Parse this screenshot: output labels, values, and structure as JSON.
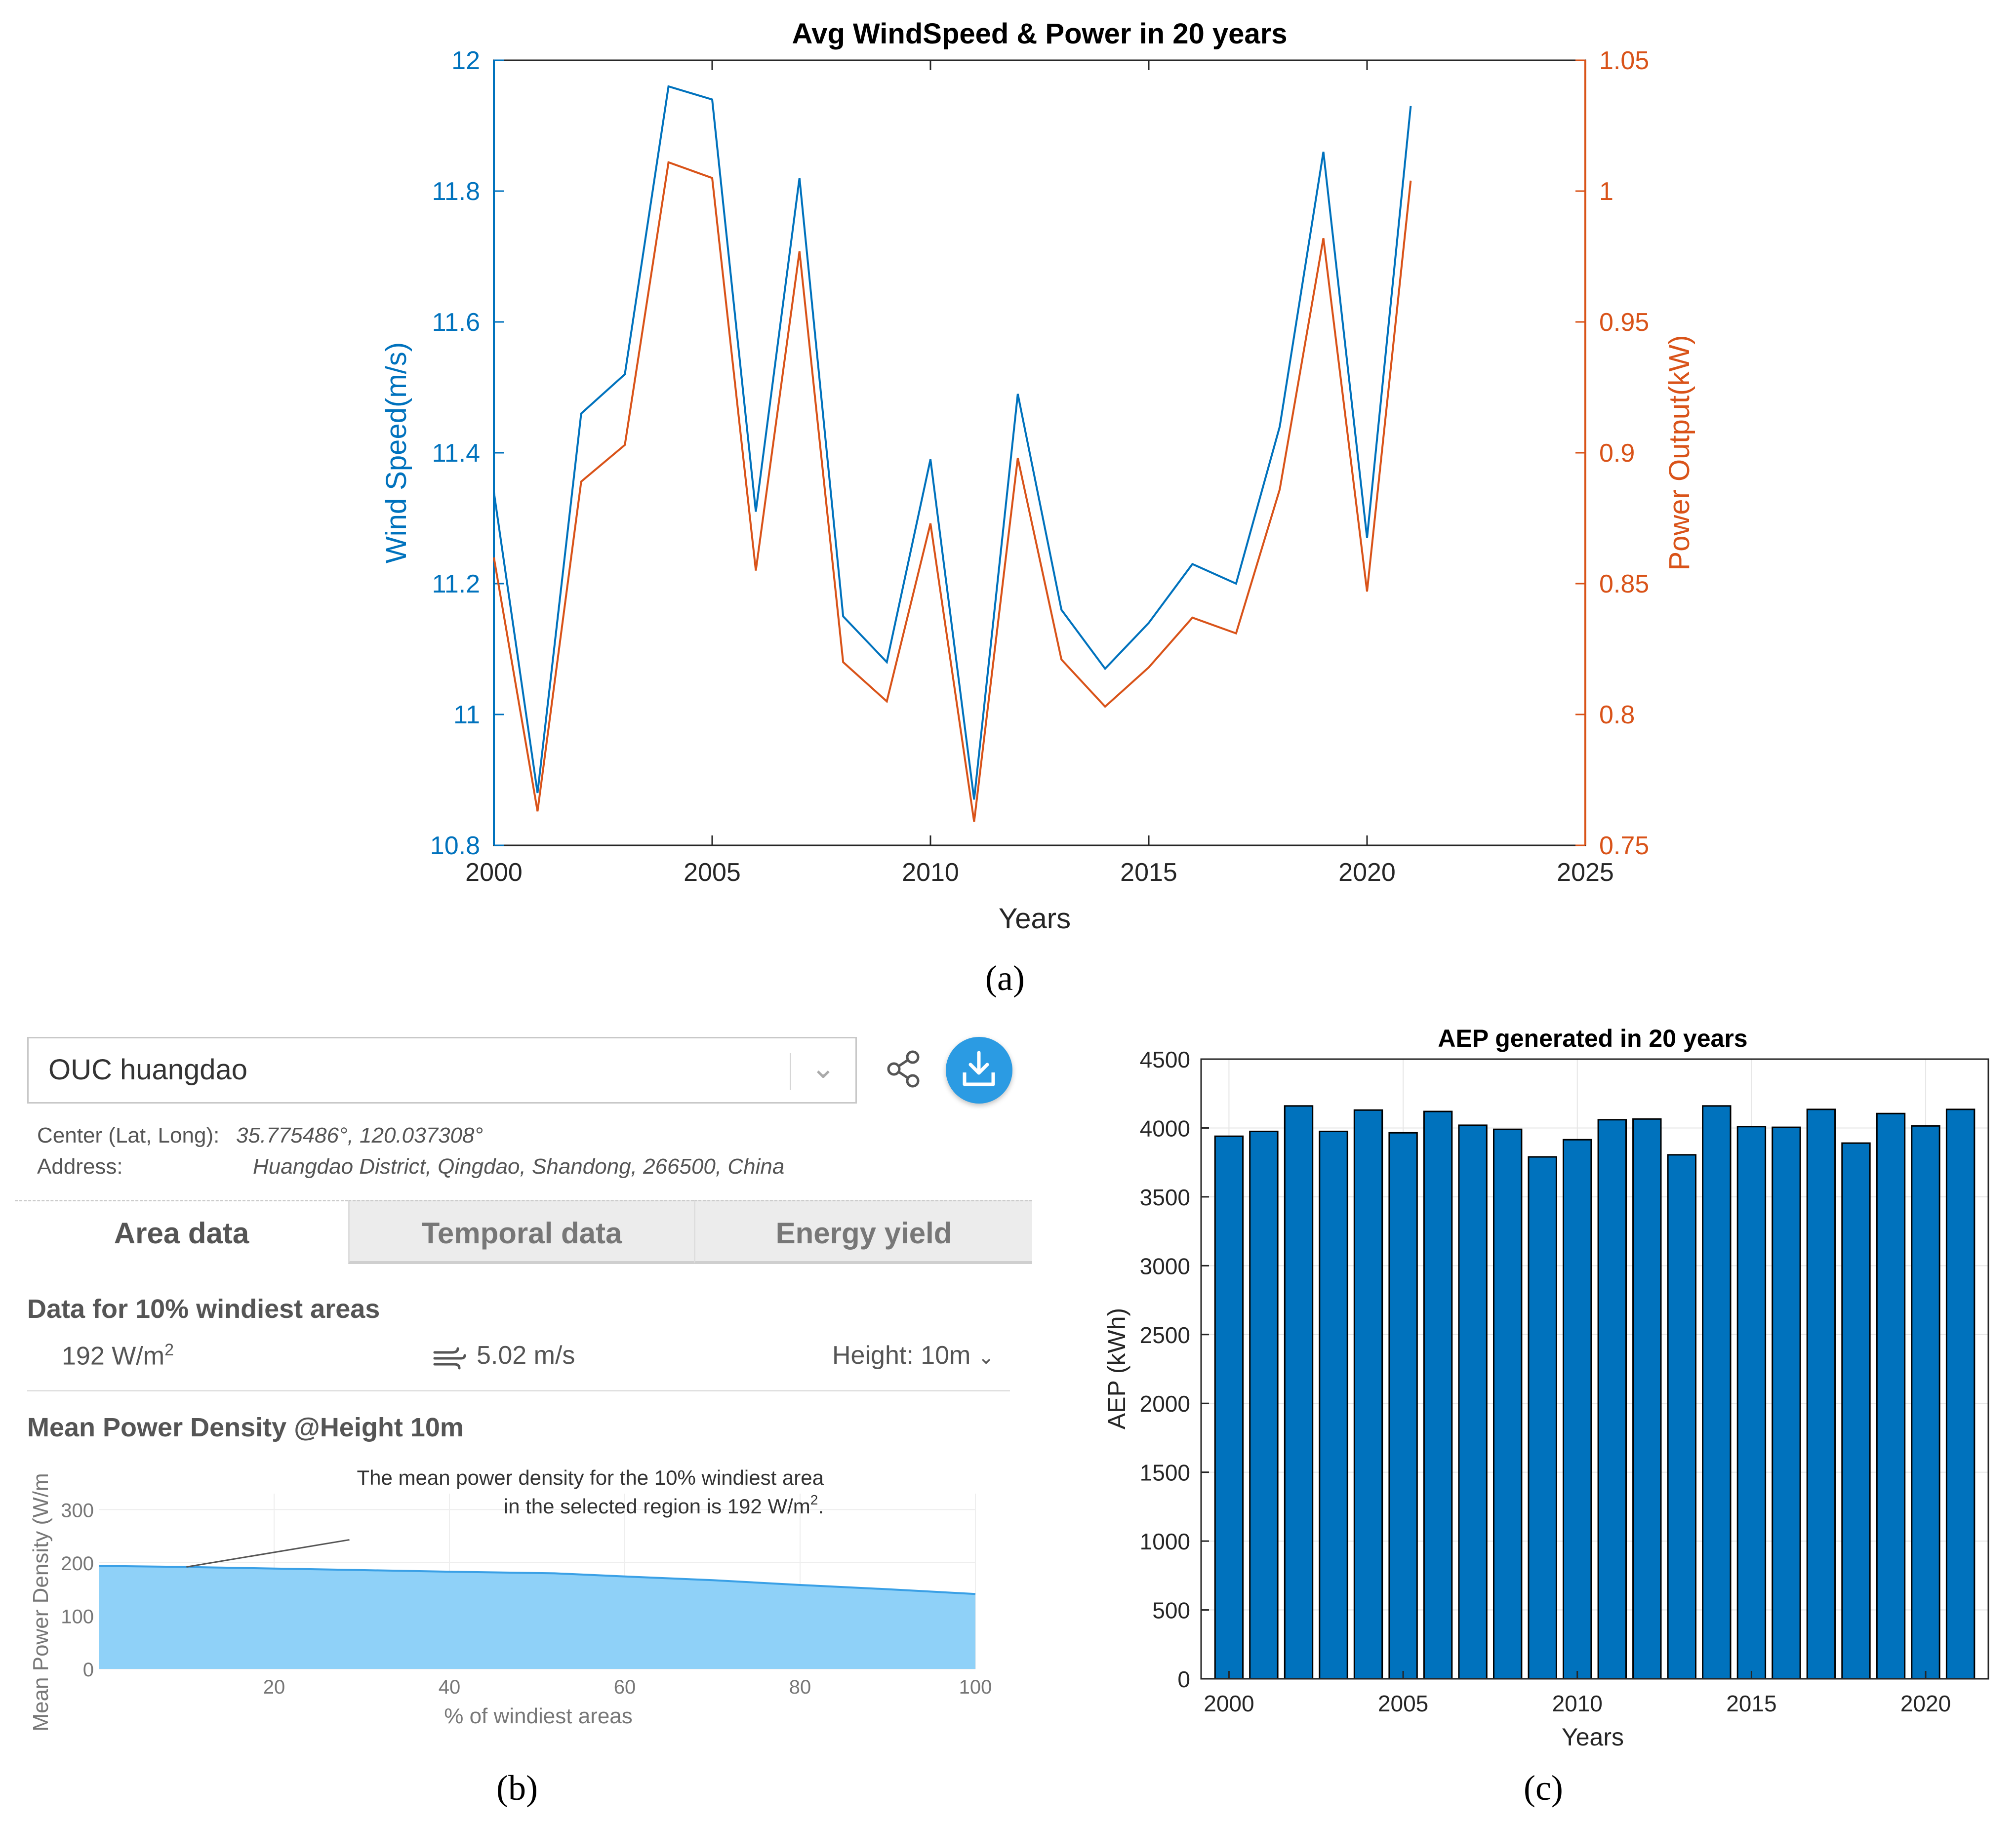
{
  "panel_a": {
    "caption": "(a)",
    "chart_data": {
      "type": "line",
      "title": "Avg WindSpeed & Power in 20 years",
      "xlabel": "Years",
      "ylabel_left": "Wind Speed(m/s)",
      "ylabel_right": "Power Output(kW)",
      "xlim": [
        2000,
        2025
      ],
      "ylim_left": [
        10.8,
        12
      ],
      "ylim_right": [
        0.75,
        1.05
      ],
      "x_ticks": [
        "2000",
        "2005",
        "2010",
        "2015",
        "2020",
        "2025"
      ],
      "y_ticks_left": [
        "10.8",
        "11",
        "11.2",
        "11.4",
        "11.6",
        "11.8",
        "12"
      ],
      "y_ticks_right": [
        "0.75",
        "0.8",
        "0.85",
        "0.9",
        "0.95",
        "1",
        "1.05"
      ],
      "x": [
        2000,
        2001,
        2002,
        2003,
        2004,
        2005,
        2006,
        2007,
        2008,
        2009,
        2010,
        2011,
        2012,
        2013,
        2014,
        2015,
        2016,
        2017,
        2018,
        2019,
        2020,
        2021
      ],
      "series": [
        {
          "name": "Wind Speed",
          "axis": "left",
          "color": "#0072BD",
          "values": [
            11.34,
            10.88,
            11.46,
            11.52,
            11.96,
            11.94,
            11.31,
            11.82,
            11.15,
            11.08,
            11.39,
            10.87,
            11.49,
            11.16,
            11.07,
            11.14,
            11.23,
            11.2,
            11.44,
            11.86,
            11.27,
            11.93
          ]
        },
        {
          "name": "Power Output",
          "axis": "right",
          "color": "#D95319",
          "values": [
            0.86,
            0.763,
            0.889,
            0.903,
            1.011,
            1.005,
            0.855,
            0.977,
            0.82,
            0.805,
            0.873,
            0.759,
            0.898,
            0.821,
            0.803,
            0.818,
            0.837,
            0.831,
            0.886,
            0.982,
            0.847,
            1.004
          ]
        }
      ]
    }
  },
  "panel_b": {
    "caption": "(b)",
    "location": "OUC huangdao",
    "center_label": "Center (Lat, Long):",
    "center_value": "35.775486°, 120.037308°",
    "address_label": "Address:",
    "address_value": "Huangdao District, Qingdao, Shandong, 266500, China",
    "tabs": [
      "Area data",
      "Temporal data",
      "Energy yield"
    ],
    "data_title": "Data for 10% windiest areas",
    "power_density": "192 W/m",
    "power_density_sup": "2",
    "wind_speed": "5.02 m/s",
    "height_label": "Height: 10m",
    "mpd_title": "Mean Power Density @Height 10m",
    "chart_data": {
      "type": "area",
      "xlabel": "% of windiest areas",
      "ylabel": "Mean Power Density (W/m",
      "x_ticks": [
        "20",
        "40",
        "60",
        "80",
        "100"
      ],
      "y_ticks": [
        "0",
        "100",
        "200",
        "300"
      ],
      "xlim": [
        0,
        100
      ],
      "ylim": [
        0,
        330
      ],
      "x": [
        0,
        10,
        20,
        30,
        40,
        52,
        60,
        70,
        80,
        90,
        100
      ],
      "values": [
        194,
        192,
        189,
        186,
        183,
        180,
        174,
        167,
        158,
        150,
        141
      ],
      "annotation_line1": "The mean power density for the 10% windiest area",
      "annotation_line2": "in the selected region is 192 W/m",
      "annotation_sup": "2",
      "annotation_end": ".",
      "fill_color": "#8fd1f8",
      "line_color": "#3aa0e6"
    }
  },
  "panel_c": {
    "caption": "(c)",
    "chart_data": {
      "type": "bar",
      "title": "AEP generated in 20 years",
      "xlabel": "Years",
      "ylabel": "AEP (kWh)",
      "xlim": [
        1999.2,
        2021.8
      ],
      "ylim": [
        0,
        4500
      ],
      "x_ticks": [
        "2000",
        "2005",
        "2010",
        "2015",
        "2020"
      ],
      "y_ticks": [
        "0",
        "500",
        "1000",
        "1500",
        "2000",
        "2500",
        "3000",
        "3500",
        "4000",
        "4500"
      ],
      "categories": [
        2000,
        2001,
        2002,
        2003,
        2004,
        2005,
        2006,
        2007,
        2008,
        2009,
        2010,
        2011,
        2012,
        2013,
        2014,
        2015,
        2016,
        2017,
        2018,
        2019,
        2020,
        2021
      ],
      "values": [
        3940,
        3975,
        4160,
        3975,
        4130,
        3965,
        4120,
        4020,
        3990,
        3790,
        3915,
        4060,
        4065,
        3805,
        4160,
        4010,
        4005,
        4135,
        3890,
        4105,
        4015,
        4135
      ],
      "bar_color": "#0072BD"
    }
  }
}
